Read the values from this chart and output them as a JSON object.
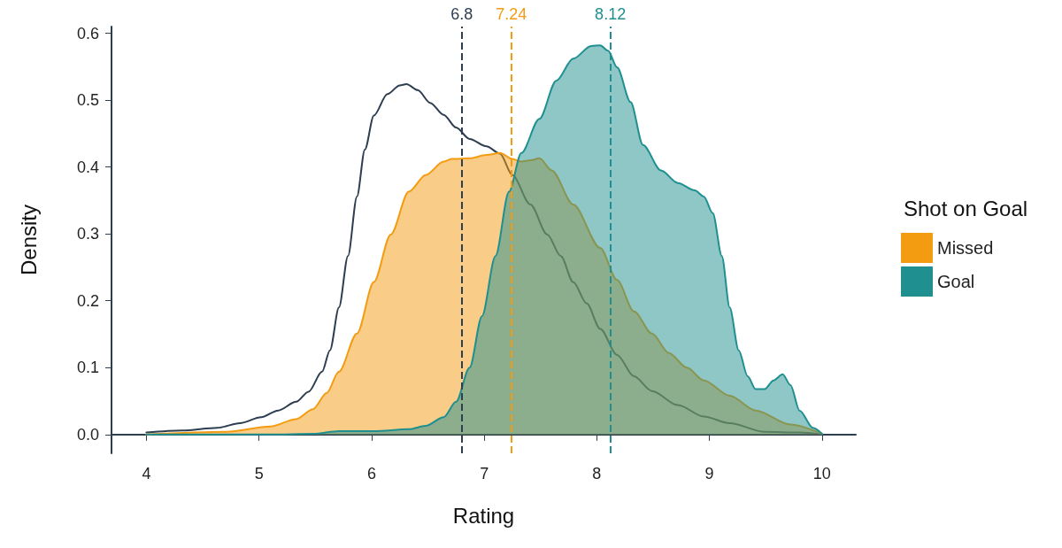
{
  "chart_data": {
    "type": "area",
    "xlabel": "Rating",
    "ylabel": "Density",
    "legend_title": "Shot on Goal",
    "legend": "right",
    "grid": false,
    "marker": "none",
    "xlim": [
      3.69,
      10.3
    ],
    "xticks": [
      4,
      5,
      6,
      7,
      8,
      9,
      10
    ],
    "ylim": [
      -0.028,
      0.61
    ],
    "yticks": [
      {
        "value": 0,
        "label": "0.0"
      },
      0.1,
      0.2,
      0.3,
      0.4,
      0.5,
      0.6
    ],
    "series": [
      {
        "type": "line",
        "color": "#2c3e50",
        "x": [
          4.0,
          4.32,
          4.63,
          4.83,
          5.02,
          5.17,
          5.33,
          5.44,
          5.56,
          5.63,
          5.71,
          5.79,
          5.87,
          5.94,
          6.02,
          6.14,
          6.25,
          6.31,
          6.41,
          6.52,
          6.64,
          6.75,
          6.87,
          7.02,
          7.14,
          7.25,
          7.41,
          7.56,
          7.68,
          7.79,
          7.91,
          8.03,
          8.18,
          8.33,
          8.49,
          8.72,
          8.95,
          9.18,
          9.49,
          9.8,
          10.0
        ],
        "values": [
          0.003,
          0.006,
          0.01,
          0.017,
          0.026,
          0.036,
          0.049,
          0.064,
          0.094,
          0.126,
          0.19,
          0.267,
          0.356,
          0.426,
          0.477,
          0.509,
          0.522,
          0.524,
          0.515,
          0.496,
          0.478,
          0.459,
          0.442,
          0.431,
          0.42,
          0.388,
          0.344,
          0.299,
          0.267,
          0.228,
          0.196,
          0.158,
          0.119,
          0.087,
          0.065,
          0.044,
          0.027,
          0.017,
          0.004,
          0.003,
          0.0
        ]
      },
      {
        "name": "Missed",
        "color": "#f39c12",
        "x": [
          4.0,
          4.71,
          5.1,
          5.33,
          5.48,
          5.6,
          5.71,
          5.87,
          6.02,
          6.17,
          6.33,
          6.48,
          6.64,
          6.71,
          6.87,
          7.02,
          7.14,
          7.25,
          7.33,
          7.41,
          7.49,
          7.6,
          7.79,
          8.03,
          8.18,
          8.33,
          8.49,
          8.64,
          8.8,
          8.95,
          9.18,
          9.41,
          9.72,
          10.0
        ],
        "values": [
          0.0,
          0.004,
          0.012,
          0.023,
          0.038,
          0.062,
          0.094,
          0.151,
          0.228,
          0.299,
          0.363,
          0.388,
          0.408,
          0.412,
          0.413,
          0.418,
          0.421,
          0.412,
          0.408,
          0.41,
          0.413,
          0.395,
          0.344,
          0.279,
          0.231,
          0.184,
          0.151,
          0.122,
          0.1,
          0.081,
          0.058,
          0.036,
          0.015,
          0.001
        ]
      },
      {
        "name": "Goal",
        "color": "#1f8f8f",
        "x": [
          4.0,
          5.1,
          5.48,
          5.71,
          6.02,
          6.33,
          6.48,
          6.64,
          6.75,
          6.87,
          6.98,
          7.1,
          7.22,
          7.33,
          7.49,
          7.64,
          7.79,
          7.95,
          8.03,
          8.1,
          8.18,
          8.3,
          8.41,
          8.57,
          8.72,
          8.87,
          8.95,
          9.03,
          9.11,
          9.18,
          9.26,
          9.34,
          9.41,
          9.49,
          9.57,
          9.65,
          9.72,
          9.8,
          9.92,
          10.0
        ],
        "values": [
          0.0,
          0.0,
          0.001,
          0.005,
          0.005,
          0.008,
          0.013,
          0.026,
          0.049,
          0.1,
          0.177,
          0.267,
          0.363,
          0.421,
          0.472,
          0.529,
          0.562,
          0.581,
          0.582,
          0.574,
          0.549,
          0.497,
          0.433,
          0.395,
          0.376,
          0.365,
          0.356,
          0.331,
          0.267,
          0.19,
          0.126,
          0.087,
          0.068,
          0.068,
          0.081,
          0.09,
          0.074,
          0.036,
          0.01,
          0.001
        ]
      }
    ],
    "ref_lines": [
      {
        "axis": "x",
        "value": 6.8,
        "label": "6.8",
        "color": "#2c3e50",
        "line_style": "dashed"
      },
      {
        "axis": "x",
        "value": 7.24,
        "label": "7.24",
        "color": "#f39c12",
        "line_style": "dashed"
      },
      {
        "axis": "x",
        "value": 8.12,
        "label": "8.12",
        "color": "#1f8f8f",
        "line_style": "dashed"
      }
    ]
  }
}
